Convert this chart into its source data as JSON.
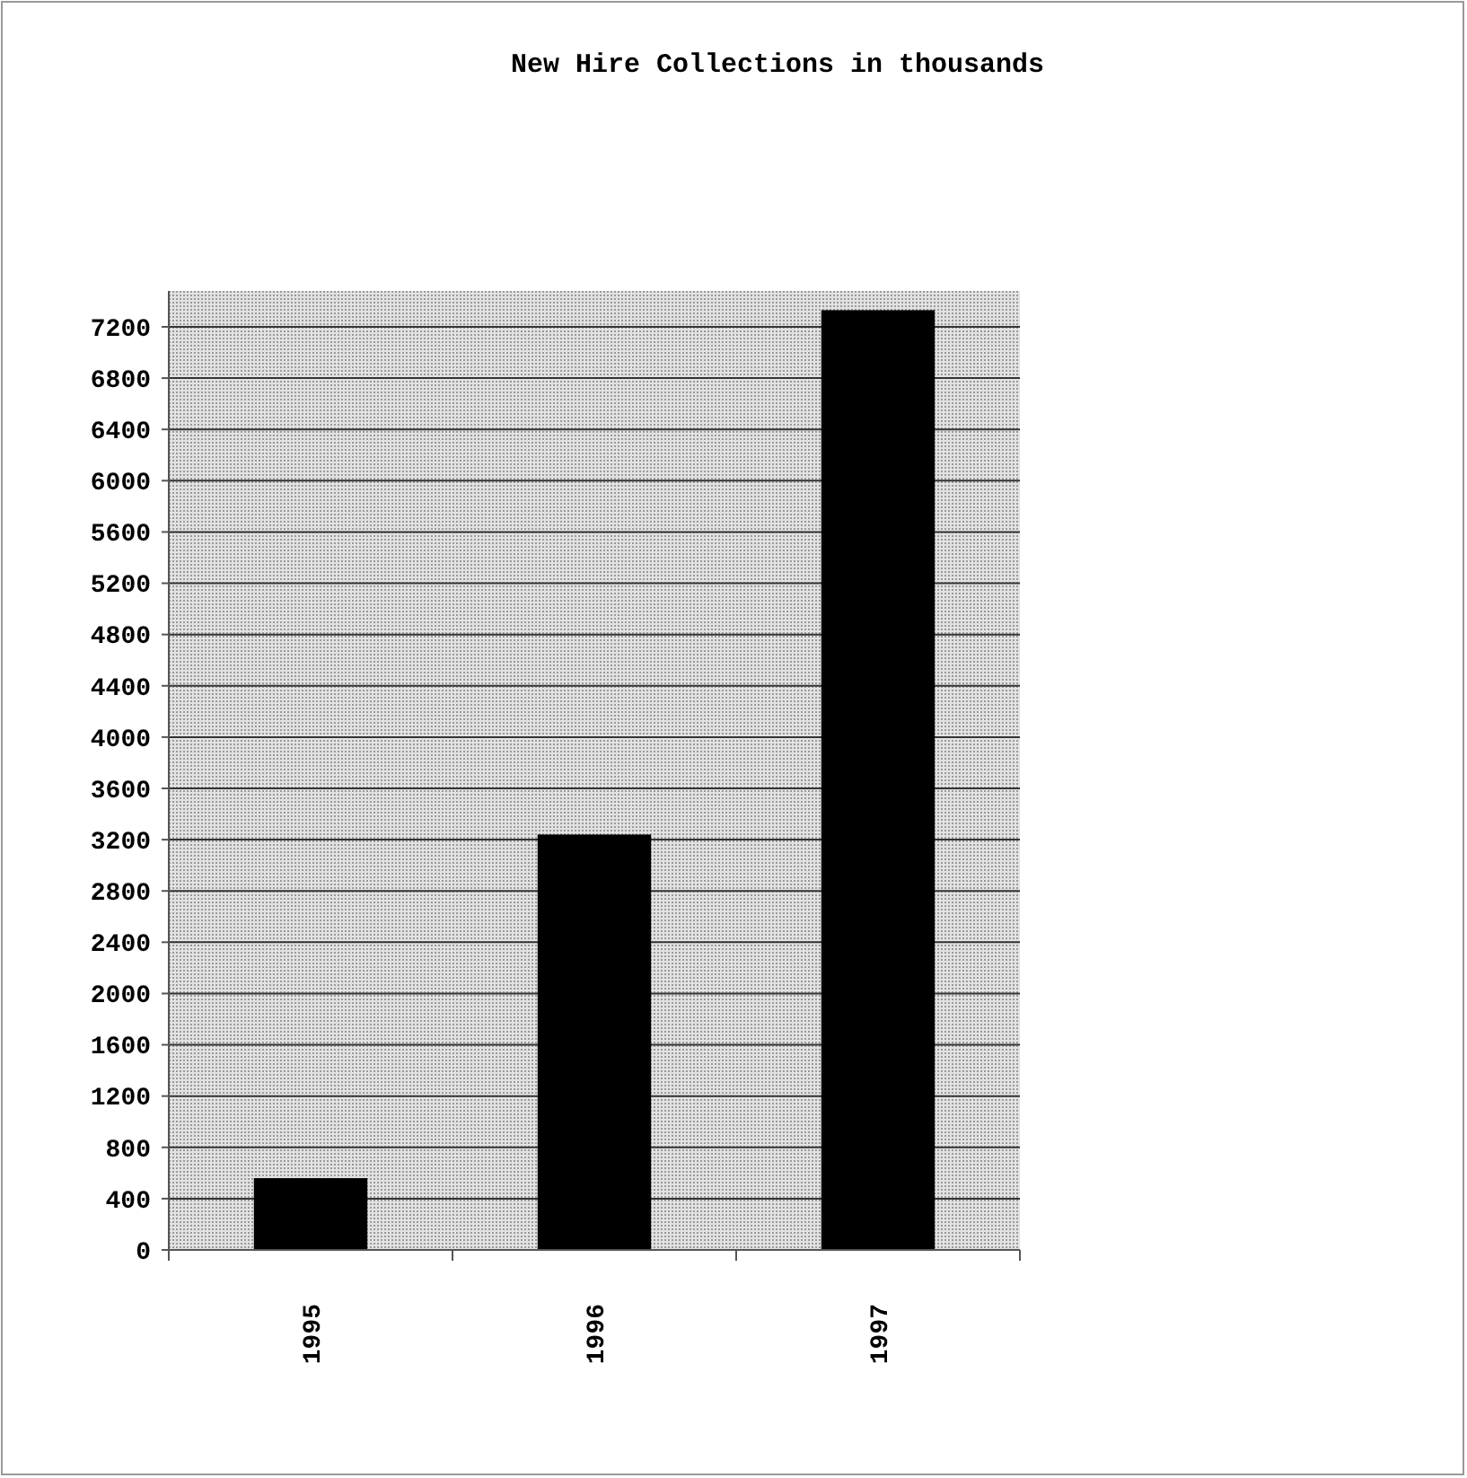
{
  "chart_data": {
    "type": "bar",
    "title": "New Hire Collections in thousands",
    "categories": [
      "1995",
      "1996",
      "1997"
    ],
    "values": [
      560,
      3240,
      7330
    ],
    "color": "#000000",
    "ylim": [
      0,
      7480
    ],
    "yticks": [
      0,
      400,
      800,
      1200,
      1600,
      2000,
      2400,
      2800,
      3200,
      3600,
      4000,
      4400,
      4800,
      5200,
      5600,
      6000,
      6400,
      6800,
      7200
    ],
    "grid": "y"
  }
}
